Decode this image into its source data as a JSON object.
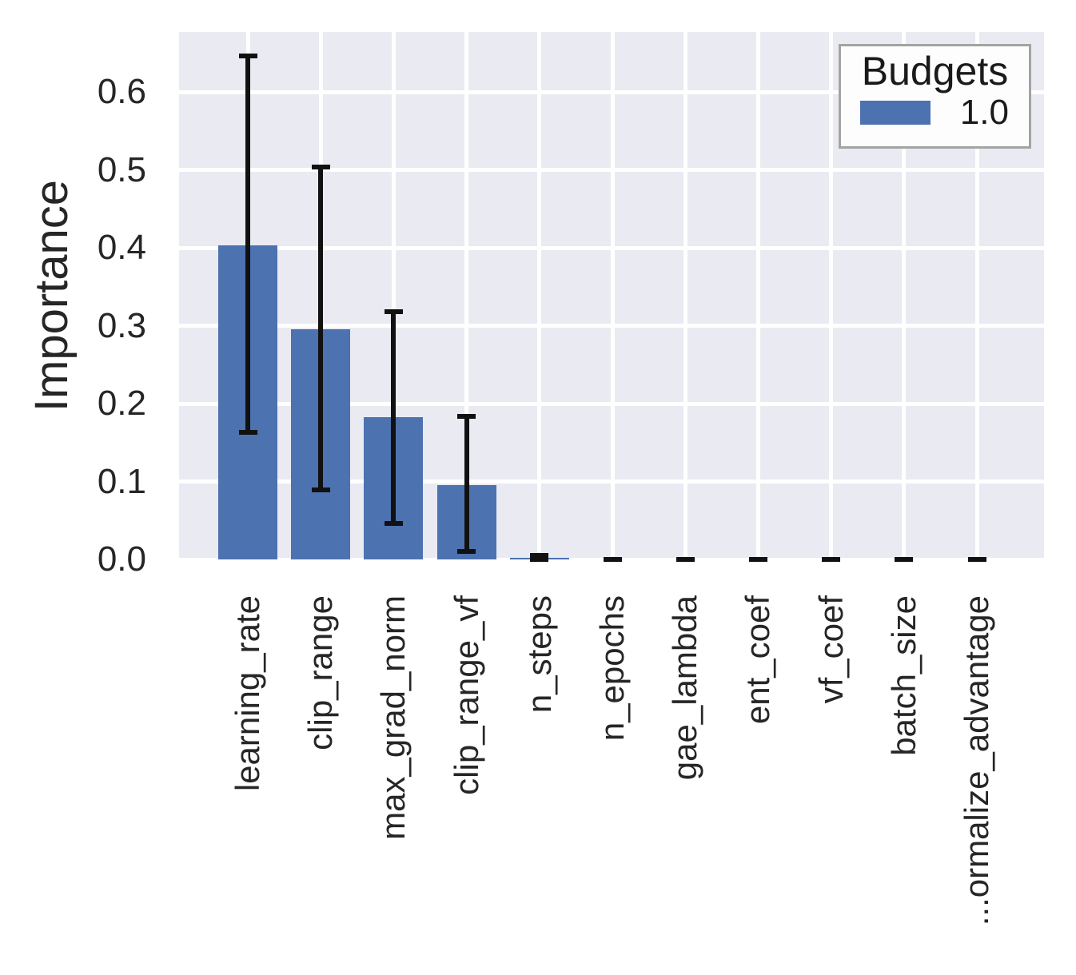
{
  "colors": {
    "bar": "#4c72b0",
    "plot_bg": "#eaeaf2",
    "grid": "#ffffff",
    "error": "#111111",
    "text": "#262626"
  },
  "chart_data": {
    "type": "bar",
    "title": "",
    "xlabel": "",
    "ylabel": "Importance",
    "categories": [
      "learning_rate",
      "clip_range",
      "max_grad_norm",
      "clip_range_vf",
      "n_steps",
      "n_epochs",
      "gae_lambda",
      "ent_coef",
      "vf_coef",
      "batch_size",
      "...ormalize_advantage"
    ],
    "series": [
      {
        "name": "1.0",
        "color": "#4c72b0",
        "values": [
          0.403,
          0.295,
          0.183,
          0.095,
          0.002,
          0.0,
          0.0,
          0.0,
          0.0,
          0.0,
          0.0
        ],
        "err_low": [
          0.163,
          0.089,
          0.046,
          0.01,
          0.0,
          0.0,
          0.0,
          0.0,
          0.0,
          0.0,
          0.0
        ],
        "err_high": [
          0.646,
          0.504,
          0.318,
          0.184,
          0.005,
          0.0,
          0.0,
          0.0,
          0.0,
          0.0,
          0.0
        ]
      }
    ],
    "ylim": [
      0,
      0.677
    ],
    "ytick_values": [
      0.0,
      0.1,
      0.2,
      0.3,
      0.4,
      0.5,
      0.6
    ],
    "ytick_labels": [
      "0.0",
      "0.1",
      "0.2",
      "0.3",
      "0.4",
      "0.5",
      "0.6"
    ],
    "grid": "on",
    "legend": {
      "title": "Budgets",
      "position": "upper right",
      "entries": [
        {
          "label": "1.0",
          "color": "#4c72b0"
        }
      ]
    }
  }
}
